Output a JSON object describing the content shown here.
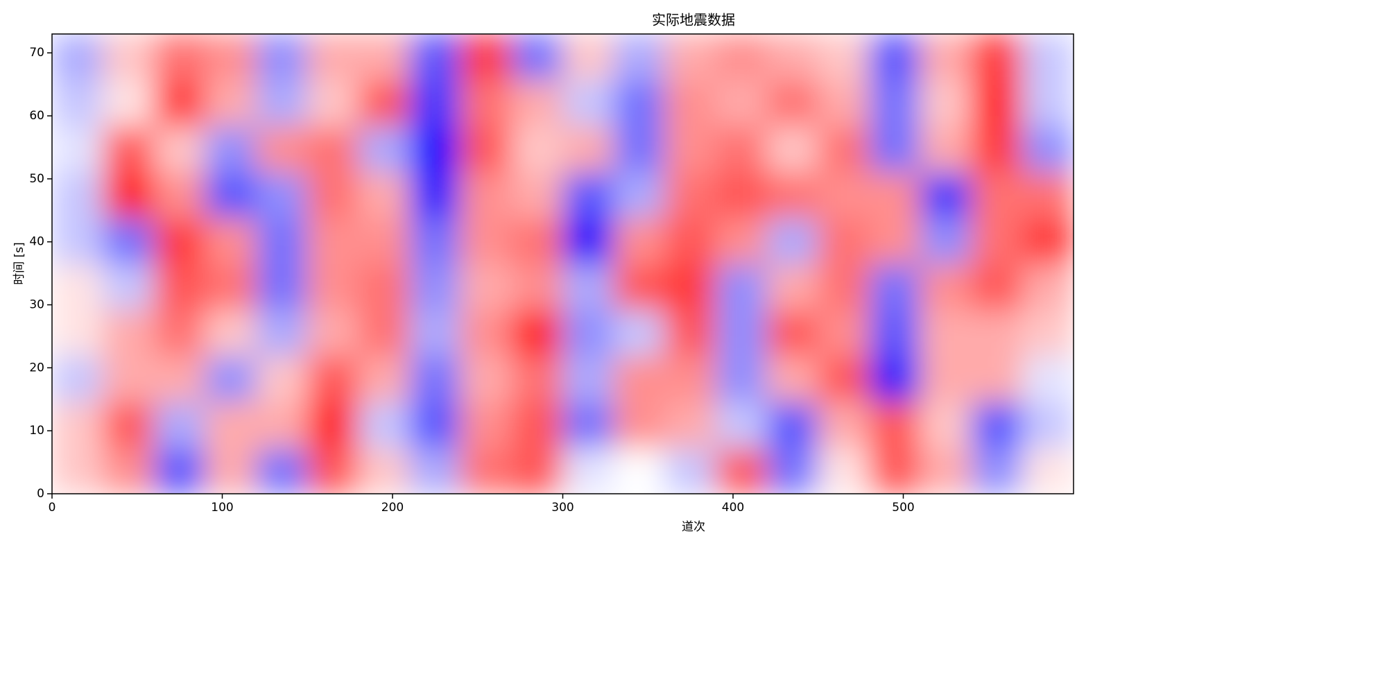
{
  "chart_data": {
    "type": "heatmap",
    "title": "实际地震数据",
    "x_label": "道次",
    "y_label": "时间 [s]",
    "xlim": [
      0,
      600
    ],
    "ylim": [
      0,
      73
    ],
    "xticks": [
      0,
      100,
      200,
      300,
      400,
      500
    ],
    "yticks": [
      0,
      10,
      20,
      30,
      40,
      50,
      60,
      70
    ],
    "colormap": "bwr",
    "values": [
      [
        0.2,
        0.4,
        -0.6,
        0.3,
        -0.5,
        0.6,
        0.2,
        -0.3,
        0.5,
        0.6,
        -0.1,
        0.0,
        -0.2,
        0.6,
        -0.5,
        0.1,
        0.6,
        0.3,
        -0.4,
        0.1
      ],
      [
        0.2,
        0.6,
        -0.3,
        0.3,
        0.3,
        0.8,
        -0.2,
        -0.6,
        0.4,
        0.6,
        -0.5,
        0.4,
        0.3,
        -0.2,
        -0.6,
        0.3,
        0.6,
        0.2,
        -0.6,
        -0.2
      ],
      [
        -0.2,
        0.3,
        0.3,
        -0.4,
        0.2,
        0.6,
        0.3,
        -0.5,
        0.3,
        0.5,
        -0.3,
        0.4,
        0.4,
        -0.4,
        0.3,
        0.6,
        -0.8,
        0.3,
        0.3,
        -0.1
      ],
      [
        0.1,
        0.3,
        0.5,
        0.2,
        -0.3,
        0.3,
        0.5,
        -0.3,
        0.4,
        0.8,
        -0.4,
        -0.2,
        0.6,
        -0.4,
        0.6,
        0.4,
        -0.6,
        0.3,
        0.3,
        0.2
      ],
      [
        0.1,
        -0.2,
        0.6,
        0.5,
        -0.5,
        0.4,
        0.5,
        -0.4,
        0.3,
        0.4,
        -0.3,
        0.6,
        0.7,
        -0.4,
        0.3,
        0.5,
        -0.5,
        0.4,
        0.6,
        0.3
      ],
      [
        -0.2,
        -0.5,
        0.7,
        0.4,
        -0.5,
        0.4,
        0.4,
        -0.5,
        0.4,
        0.5,
        -0.9,
        0.4,
        0.6,
        0.4,
        -0.3,
        0.5,
        0.4,
        -0.4,
        0.5,
        0.7
      ],
      [
        -0.2,
        0.8,
        0.4,
        -0.6,
        -0.4,
        0.5,
        0.3,
        -0.8,
        0.4,
        0.3,
        -0.6,
        -0.3,
        0.5,
        0.6,
        0.5,
        0.4,
        0.4,
        -0.7,
        0.5,
        0.5
      ],
      [
        -0.1,
        0.6,
        0.2,
        -0.4,
        0.4,
        0.5,
        -0.3,
        -0.9,
        0.6,
        0.2,
        0.3,
        -0.5,
        0.4,
        0.5,
        0.2,
        0.5,
        -0.5,
        0.3,
        0.7,
        -0.4
      ],
      [
        -0.2,
        0.1,
        0.7,
        0.3,
        -0.3,
        0.2,
        0.6,
        -0.7,
        0.5,
        0.3,
        -0.2,
        -0.5,
        0.4,
        0.3,
        0.5,
        0.3,
        -0.5,
        0.2,
        0.8,
        -0.2
      ],
      [
        -0.3,
        0.2,
        0.5,
        0.4,
        -0.4,
        0.3,
        0.3,
        -0.6,
        0.7,
        -0.5,
        0.2,
        -0.3,
        0.3,
        0.4,
        0.3,
        0.2,
        -0.6,
        0.3,
        0.7,
        -0.2
      ]
    ]
  }
}
